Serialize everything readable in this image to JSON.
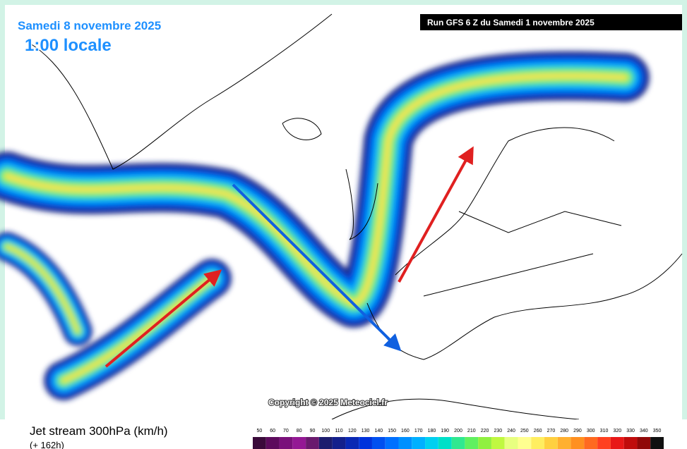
{
  "header": {
    "date": "Samedi 8 novembre 2025",
    "time": "1:00 locale",
    "run": "Run GFS 6 Z du Samedi 1 novembre 2025"
  },
  "copyright": "Copyright © 2025 Meteociel.fr",
  "legend": {
    "title": "Jet stream 300hPa (km/h)",
    "lead": "(+ 162h)",
    "scale": [
      50,
      60,
      70,
      80,
      90,
      100,
      110,
      120,
      130,
      140,
      150,
      160,
      170,
      180,
      190,
      200,
      210,
      220,
      230,
      240,
      250,
      260,
      270,
      280,
      290,
      300,
      310,
      320,
      330,
      340,
      350
    ],
    "colors": [
      "#3a0a3a",
      "#5c0b5c",
      "#7a107a",
      "#941894",
      "#6a1a6e",
      "#1c1c6e",
      "#14208c",
      "#0a28b4",
      "#0032dc",
      "#0050f0",
      "#0070ff",
      "#0090ff",
      "#00b0ff",
      "#00d0f0",
      "#00e0c8",
      "#30e890",
      "#60f060",
      "#90f040",
      "#c0f840",
      "#e8ff80",
      "#ffff90",
      "#ffee60",
      "#ffd040",
      "#ffb030",
      "#ff9020",
      "#ff6a20",
      "#ff4020",
      "#e81818",
      "#c00c0c",
      "#900808",
      "#101010"
    ]
  }
}
